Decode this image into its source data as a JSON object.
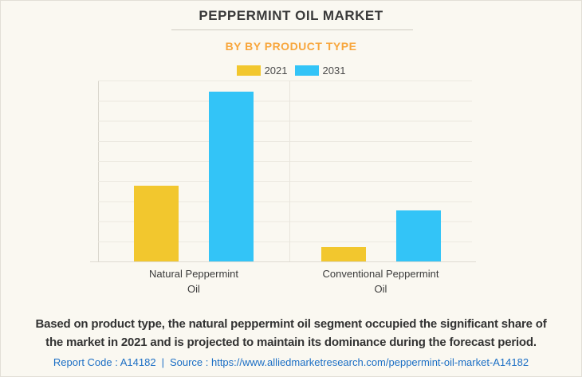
{
  "header": {
    "title": "PEPPERMINT OIL MARKET",
    "subtitle": "BY BY PRODUCT TYPE"
  },
  "chart_data": {
    "type": "bar",
    "title": "PEPPERMINT OIL MARKET",
    "subtitle": "BY BY PRODUCT TYPE",
    "categories": [
      "Natural Peppermint Oil",
      "Conventional Peppermint Oil"
    ],
    "categories_lines": [
      [
        "Natural Peppermint",
        "Oil"
      ],
      [
        "Conventional Peppermint",
        "Oil"
      ]
    ],
    "series": [
      {
        "name": "2021",
        "color": "#F2C72E",
        "values_relative": [
          0.42,
          0.08
        ]
      },
      {
        "name": "2031",
        "color": "#33C4F7",
        "values_relative": [
          0.94,
          0.28
        ]
      }
    ],
    "y_axis": {
      "tick_labels_visible": false,
      "gridline_intervals": 9,
      "range_relative": [
        0,
        1
      ]
    },
    "legend_position": "top",
    "grid": true,
    "value_note": "No numeric y-axis labels shown in image; values_relative are bar heights as fraction of plot height"
  },
  "description": {
    "lines": [
      "Based on product type, the natural peppermint oil segment occupied the significant share of",
      "the market in 2021 and is projected to maintain its dominance during the forecast period."
    ]
  },
  "footer": {
    "report_code": "Report Code : A14182",
    "separator": "|",
    "source": "Source : https://www.alliedmarketresearch.com/peppermint-oil-market-A14182"
  },
  "colors": {
    "background": "#FAF8F1",
    "accent_orange": "#F8A63C",
    "series_2021": "#F2C72E",
    "series_2031": "#33C4F7",
    "footer_link_blue": "#1C6FC5"
  }
}
